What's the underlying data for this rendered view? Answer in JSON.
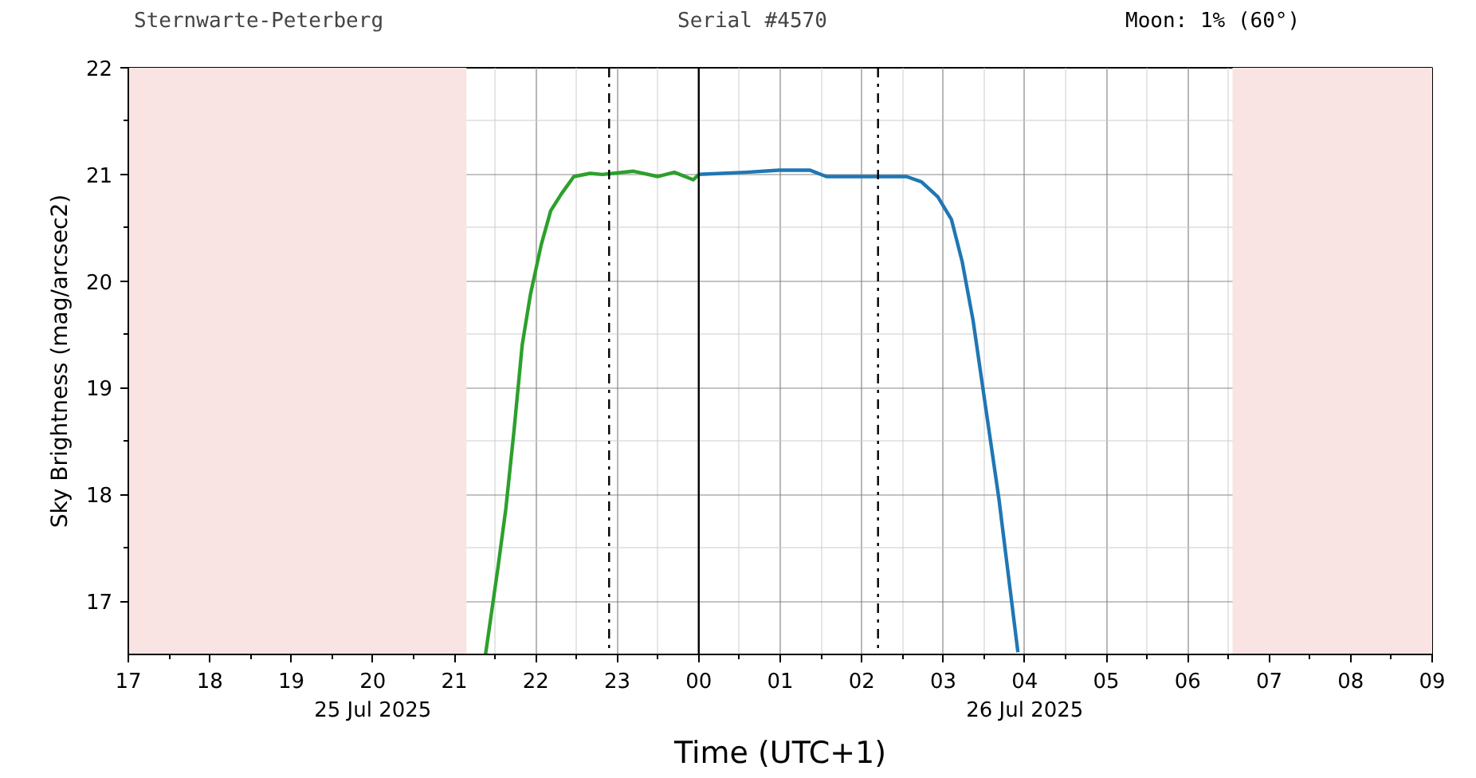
{
  "chart_data": {
    "type": "line",
    "xlabel": "Time (UTC+1)",
    "ylabel": "Sky Brightness (mag/arcsec2)",
    "annotations": [
      "Sternwarte-Peterberg",
      "Serial #4570",
      "Moon: 1% (60°)"
    ],
    "series": [
      {
        "color": "#2ca02c",
        "x": [
          "2025-07-25T21:23",
          "2025-07-25T21:32",
          "2025-07-25T21:38",
          "2025-07-25T21:44",
          "2025-07-25T21:50",
          "2025-07-25T21:56",
          "2025-07-25T22:04",
          "2025-07-25T22:11",
          "2025-07-25T22:19",
          "2025-07-25T22:28",
          "2025-07-25T22:40",
          "2025-07-25T22:49",
          "2025-07-25T23:12",
          "2025-07-25T23:30",
          "2025-07-25T23:42",
          "2025-07-25T23:56",
          "2025-07-26T00:00"
        ],
        "values": [
          16.5,
          17.3,
          17.87,
          18.6,
          19.4,
          19.87,
          20.34,
          20.66,
          20.82,
          20.98,
          21.01,
          21.0,
          21.03,
          20.98,
          21.02,
          20.95,
          21.0
        ]
      },
      {
        "color": "#1f77b4",
        "x": [
          "2025-07-26T00:00",
          "2025-07-26T00:35",
          "2025-07-26T00:59",
          "2025-07-26T01:22",
          "2025-07-26T01:34",
          "2025-07-26T01:58",
          "2025-07-26T02:33",
          "2025-07-26T02:44",
          "2025-07-26T02:56",
          "2025-07-26T03:06",
          "2025-07-26T03:14",
          "2025-07-26T03:22",
          "2025-07-26T03:32",
          "2025-07-26T03:41",
          "2025-07-26T03:48",
          "2025-07-26T03:55"
        ],
        "values": [
          21.0,
          21.02,
          21.04,
          21.04,
          20.98,
          20.98,
          20.98,
          20.93,
          20.79,
          20.58,
          20.18,
          19.63,
          18.75,
          17.96,
          17.24,
          16.52
        ]
      }
    ],
    "xlim": [
      "2025-07-25T17:00",
      "2025-07-26T09:00"
    ],
    "ylim": [
      16.5,
      22
    ],
    "xticks": [
      {
        "value": "2025-07-25T17:00",
        "label": "17"
      },
      {
        "value": "2025-07-25T18:00",
        "label": "18"
      },
      {
        "value": "2025-07-25T19:00",
        "label": "19"
      },
      {
        "value": "2025-07-25T20:00",
        "label": "20\n25 Jul 2025"
      },
      {
        "value": "2025-07-25T21:00",
        "label": "21"
      },
      {
        "value": "2025-07-25T22:00",
        "label": "22"
      },
      {
        "value": "2025-07-25T23:00",
        "label": "23"
      },
      {
        "value": "2025-07-26T00:00",
        "label": "00"
      },
      {
        "value": "2025-07-26T01:00",
        "label": "01"
      },
      {
        "value": "2025-07-26T02:00",
        "label": "02"
      },
      {
        "value": "2025-07-26T03:00",
        "label": "03"
      },
      {
        "value": "2025-07-26T04:00",
        "label": "04\n26 Jul 2025"
      },
      {
        "value": "2025-07-26T05:00",
        "label": "05"
      },
      {
        "value": "2025-07-26T06:00",
        "label": "06"
      },
      {
        "value": "2025-07-26T07:00",
        "label": "07"
      },
      {
        "value": "2025-07-26T08:00",
        "label": "08"
      },
      {
        "value": "2025-07-26T09:00",
        "label": "09"
      }
    ],
    "yticks": [
      17,
      18,
      19,
      20,
      21,
      22
    ],
    "bands": [
      {
        "axis": "x",
        "from": "2025-07-25T17:00",
        "to": "2025-07-25T21:09",
        "color": "#f9e3e3"
      },
      {
        "axis": "x",
        "from": "2025-07-26T06:33",
        "to": "2025-07-26T09:00",
        "color": "#f9e3e3"
      }
    ],
    "ref_lines": [
      {
        "axis": "x",
        "value": "2025-07-25T22:54",
        "line_style": "dashdot",
        "color": "#000000"
      },
      {
        "axis": "x",
        "value": "2025-07-26T00:00",
        "line_style": "solid",
        "color": "#000000"
      },
      {
        "axis": "x",
        "value": "2025-07-26T02:12",
        "line_style": "dashdot",
        "color": "#000000"
      }
    ],
    "grid": true,
    "marker": "none",
    "line_style": "solid"
  }
}
